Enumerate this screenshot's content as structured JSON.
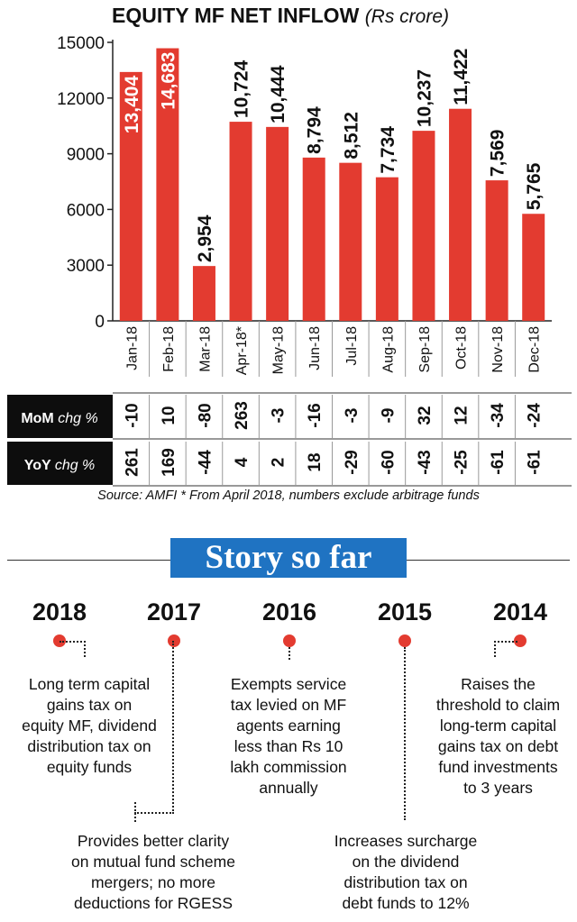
{
  "chart_data": {
    "type": "bar",
    "title": "EQUITY MF NET INFLOW",
    "subtitle": "(Rs crore)",
    "categories": [
      "Jan-18",
      "Feb-18",
      "Mar-18",
      "Apr-18*",
      "May-18",
      "Jun-18",
      "Jul-18",
      "Aug-18",
      "Sep-18",
      "Oct-18",
      "Nov-18",
      "Dec-18"
    ],
    "values": [
      13404,
      14683,
      2954,
      10724,
      10444,
      8794,
      8512,
      7734,
      10237,
      11422,
      7569,
      5765
    ],
    "value_labels": [
      "13,404",
      "14,683",
      "2,954",
      "10,724",
      "10,444",
      "8,794",
      "8,512",
      "7,734",
      "10,237",
      "11,422",
      "7,569",
      "5,765"
    ],
    "yticks": [
      "0",
      "3000",
      "6000",
      "9000",
      "12000",
      "15000"
    ],
    "ylim": [
      0,
      15000
    ],
    "xlabel": "",
    "ylabel": "",
    "bar_color": "#e33b30",
    "grid": false
  },
  "table": {
    "rows": [
      {
        "label_bold": "MoM",
        "label_italic": "chg %",
        "values": [
          "-10",
          "10",
          "-80",
          "263",
          "-3",
          "-16",
          "-3",
          "-9",
          "32",
          "12",
          "-34",
          "-24"
        ]
      },
      {
        "label_bold": "YoY",
        "label_italic": "chg %",
        "values": [
          "261",
          "169",
          "-44",
          "4",
          "2",
          "18",
          "-29",
          "-60",
          "-43",
          "-25",
          "-61",
          "-61"
        ]
      }
    ]
  },
  "source": "Source: AMFI * From April 2018, numbers exclude arbitrage funds",
  "story": {
    "heading": "Story so far",
    "items": [
      {
        "year": "2018",
        "lines": [
          "Long term capital",
          "gains tax on",
          "equity MF, dividend",
          "distribution tax on",
          "equity funds"
        ]
      },
      {
        "year": "2017",
        "lines": [
          "Provides better clarity",
          "on mutual fund scheme",
          "mergers; no more",
          "deductions for RGESS"
        ]
      },
      {
        "year": "2016",
        "lines": [
          "Exempts service",
          "tax levied on MF",
          "agents earning",
          "less than Rs 10",
          "lakh commission",
          "annually"
        ]
      },
      {
        "year": "2015",
        "lines": [
          "Increases surcharge",
          "on the dividend",
          "distribution tax on",
          "debt funds to 12%"
        ]
      },
      {
        "year": "2014",
        "lines": [
          "Raises the",
          "threshold to claim",
          "long-term capital",
          "gains tax on debt",
          "fund investments",
          "to 3 years"
        ]
      }
    ]
  },
  "colors": {
    "bar": "#e33b30",
    "heading_bg": "#1f73c2",
    "dot": "#e33b30"
  }
}
